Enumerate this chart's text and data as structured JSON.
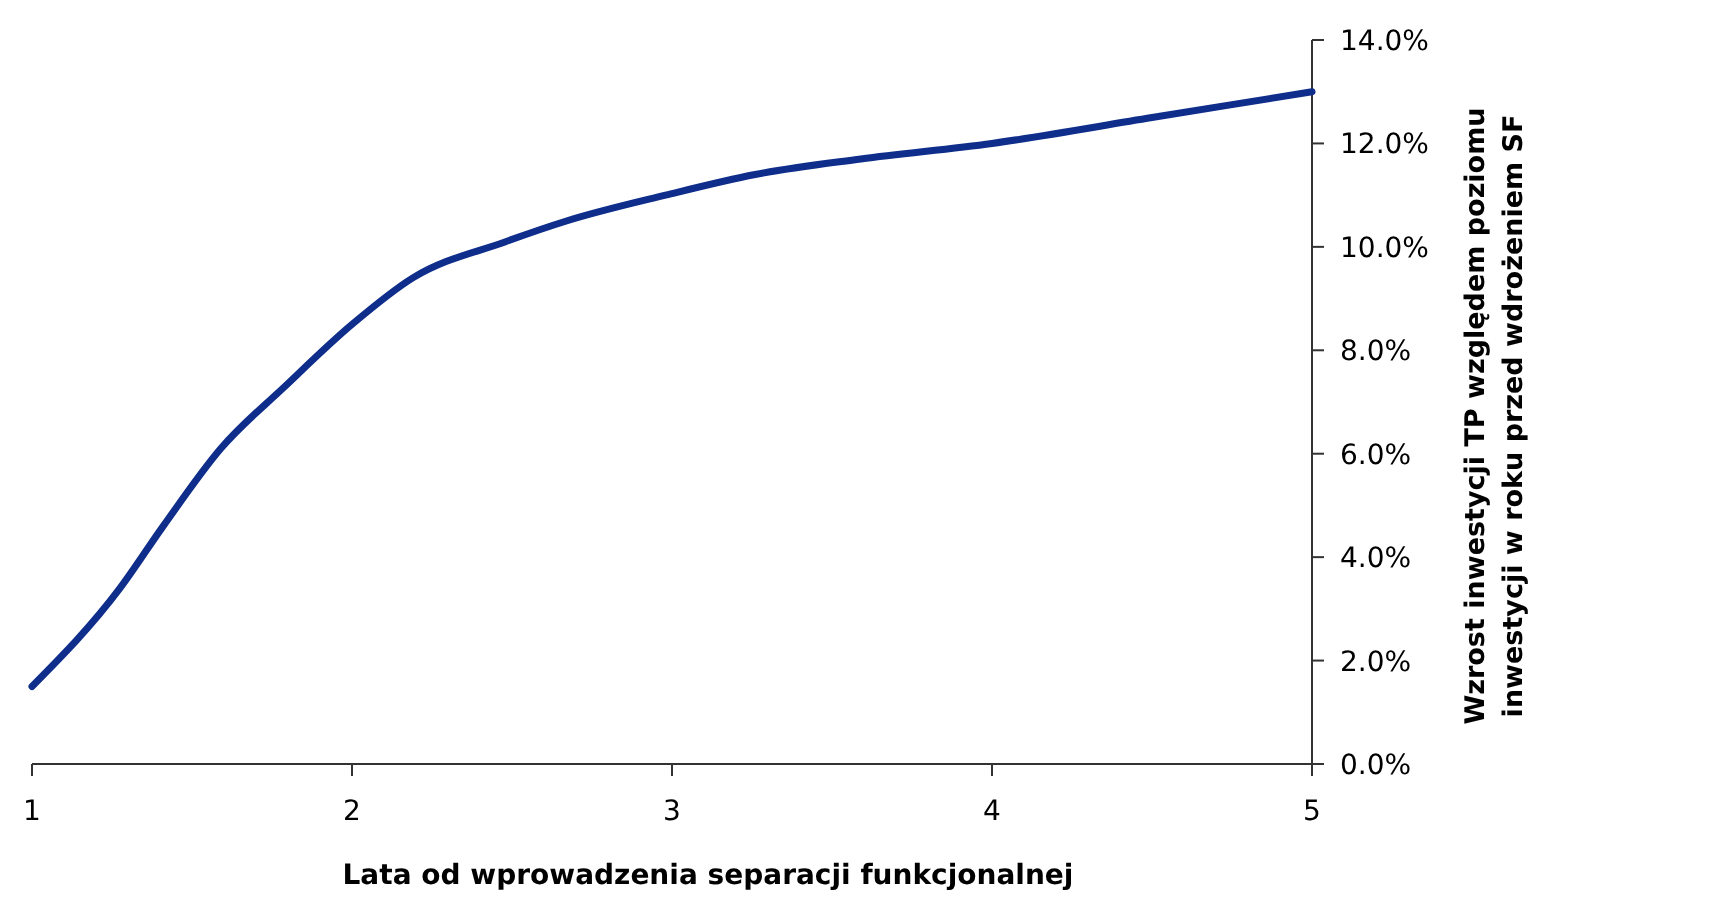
{
  "chart_data": {
    "type": "line",
    "xlabel": "Lata od wprowadzenia separacji funkcjonalnej",
    "ylabel": "Wzrost inwestycji TP względem poziomu\ninwestycji w roku przed wdrożeniem SF",
    "x": [
      1,
      1.275,
      1.41,
      1.59,
      1.79,
      2.0,
      2.19,
      2.48,
      2.67,
      2.98,
      3.26,
      3.59,
      4,
      4.5,
      5
    ],
    "series": [
      {
        "color": "#0f2d8a",
        "values": [
          1.5,
          3.4,
          4.6,
          6.1,
          7.3,
          8.5,
          9.4,
          10.1,
          10.5,
          11.0,
          11.4,
          11.7,
          12.0,
          12.5,
          13.0
        ]
      }
    ],
    "xlim": [
      1,
      5
    ],
    "xticks": [
      1,
      2,
      3,
      4,
      5
    ],
    "ylim": [
      0,
      14
    ],
    "yticks": [
      {
        "value": 0,
        "label": "0.0%"
      },
      {
        "value": 2,
        "label": "2.0%"
      },
      {
        "value": 4,
        "label": "4.0%"
      },
      {
        "value": 6,
        "label": "6.0%"
      },
      {
        "value": 8,
        "label": "8.0%"
      },
      {
        "value": 10,
        "label": "10.0%"
      },
      {
        "value": 12,
        "label": "12.0%"
      },
      {
        "value": 14,
        "label": "14.0%"
      }
    ],
    "grid": false,
    "marker": "none",
    "line_style": "solid"
  }
}
